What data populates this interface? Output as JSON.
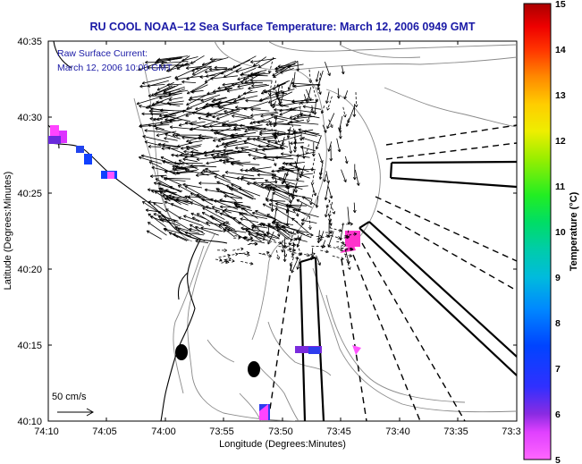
{
  "title": "RU COOL   NOAA–12  Sea Surface Temperature:  March 12, 2006 0949 GMT",
  "overlay": {
    "line1": "Raw Surface Current:",
    "line2": "March 12, 2006 10:00 GMT"
  },
  "scale_label": "50 cm/s",
  "x_axis": {
    "label": "Longitude (Degrees:Minutes)",
    "ticks": [
      "74:10",
      "74:05",
      "74:00",
      "73:55",
      "73:50",
      "73:45",
      "73:40",
      "73:35",
      "73:3"
    ]
  },
  "y_axis": {
    "label": "Latitude (Degrees:Minutes)",
    "ticks": [
      "40:35",
      "40:30",
      "40:25",
      "40:20",
      "40:15",
      "40:10"
    ]
  },
  "colorbar": {
    "label": "Temperature (°C)",
    "ticks": [
      "15",
      "14",
      "13",
      "12",
      "11",
      "10",
      "9",
      "8",
      "7",
      "6",
      "5"
    ],
    "min": 5,
    "max": 15
  },
  "colors": {
    "title": "#1a1aa6",
    "land": "#ffffff",
    "vectors": "#000000"
  }
}
